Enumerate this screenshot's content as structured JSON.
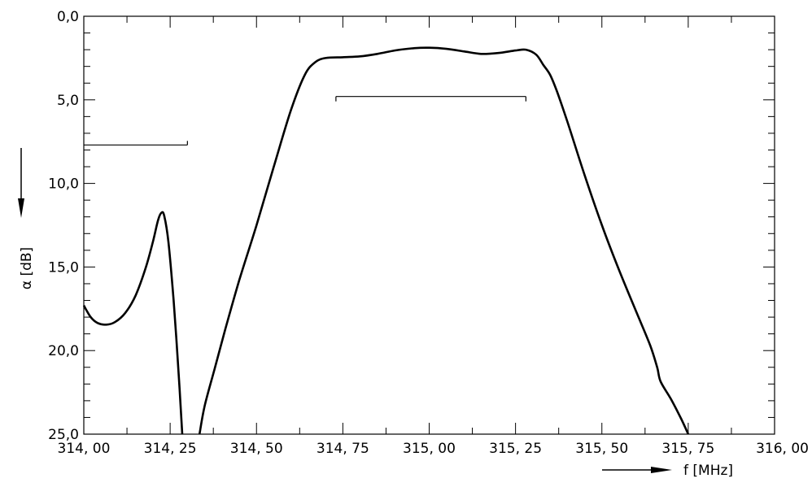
{
  "chart_data": {
    "type": "line",
    "title": "",
    "xlabel": "f [MHz]",
    "ylabel": "α [dB]",
    "x_tick_labels": [
      "314, 00",
      "314, 25",
      "314, 50",
      "314, 75",
      "315, 00",
      "315, 25",
      "315, 50",
      "315, 75",
      "316, 00"
    ],
    "y_tick_labels": [
      "0,0",
      "5,0",
      "10,0",
      "15,0",
      "20,0",
      "25,0"
    ],
    "xlim": [
      314.0,
      316.0
    ],
    "ylim": [
      0,
      25
    ],
    "y_inverted": true,
    "grid": false,
    "series": [
      {
        "segments": [
          [
            [
              314.0,
              17.3
            ],
            [
              314.02,
              18.0
            ],
            [
              314.04,
              18.35
            ],
            [
              314.065,
              18.45
            ],
            [
              314.09,
              18.3
            ],
            [
              314.12,
              17.75
            ],
            [
              314.15,
              16.7
            ],
            [
              314.18,
              15.0
            ],
            [
              314.2,
              13.5
            ],
            [
              314.215,
              12.2
            ],
            [
              314.225,
              11.75
            ],
            [
              314.233,
              11.95
            ],
            [
              314.245,
              13.5
            ],
            [
              314.26,
              17.0
            ],
            [
              314.275,
              21.5
            ],
            [
              314.285,
              25.0
            ]
          ],
          [
            [
              314.335,
              25.0
            ],
            [
              314.35,
              23.3
            ],
            [
              314.38,
              21.0
            ],
            [
              314.41,
              18.7
            ],
            [
              314.45,
              15.8
            ],
            [
              314.5,
              12.5
            ],
            [
              314.55,
              9.0
            ],
            [
              314.6,
              5.6
            ],
            [
              314.64,
              3.5
            ],
            [
              314.67,
              2.75
            ],
            [
              314.7,
              2.5
            ],
            [
              314.75,
              2.45
            ],
            [
              314.8,
              2.4
            ],
            [
              314.85,
              2.25
            ],
            [
              314.9,
              2.05
            ],
            [
              314.95,
              1.92
            ],
            [
              315.0,
              1.88
            ],
            [
              315.05,
              1.95
            ],
            [
              315.1,
              2.1
            ],
            [
              315.15,
              2.25
            ],
            [
              315.2,
              2.2
            ],
            [
              315.25,
              2.05
            ],
            [
              315.28,
              2.0
            ],
            [
              315.31,
              2.3
            ],
            [
              315.33,
              2.9
            ],
            [
              315.35,
              3.5
            ],
            [
              315.37,
              4.5
            ],
            [
              315.4,
              6.3
            ],
            [
              315.45,
              9.5
            ],
            [
              315.5,
              12.5
            ],
            [
              315.55,
              15.2
            ],
            [
              315.6,
              17.7
            ],
            [
              315.64,
              19.7
            ],
            [
              315.66,
              21.0
            ],
            [
              315.67,
              21.85
            ],
            [
              315.7,
              22.9
            ],
            [
              315.73,
              24.1
            ],
            [
              315.75,
              25.0
            ]
          ]
        ]
      }
    ],
    "annotations": [
      {
        "type": "hbar",
        "x_from": 314.0,
        "x_to": 314.3,
        "y": 7.7
      },
      {
        "type": "hbar",
        "x_from": 314.73,
        "x_to": 315.28,
        "y": 4.8
      }
    ]
  }
}
